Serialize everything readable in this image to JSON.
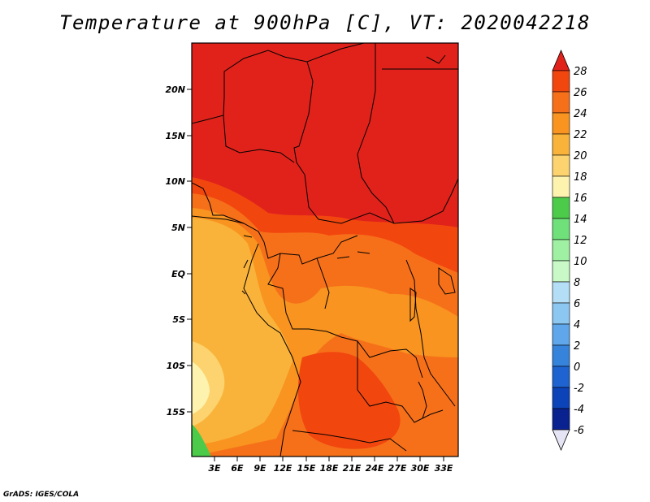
{
  "map": {
    "title": "Temperature at 900hPa [C], VT: 2020042218",
    "lat_labels": [
      "20N",
      "15N",
      "10N",
      "5N",
      "EQ",
      "5S",
      "10S",
      "15S"
    ],
    "lon_labels": [
      "3E",
      "6E",
      "9E",
      "12E",
      "15E",
      "18E",
      "21E",
      "24E",
      "27E",
      "30E",
      "33E"
    ],
    "credit": "GrADS: IGES/COLA"
  },
  "colorbar": {
    "labels": [
      "28",
      "26",
      "24",
      "22",
      "20",
      "18",
      "16",
      "14",
      "12",
      "10",
      "8",
      "6",
      "4",
      "2",
      "0",
      "-2",
      "-4",
      "-6"
    ],
    "colors": [
      "#e0221b",
      "#f2460f",
      "#f6701a",
      "#f8941f",
      "#f9b33a",
      "#fcd36e",
      "#fdf2ae",
      "#4ccb4b",
      "#6fe07a",
      "#9ff0a2",
      "#c8f9c6",
      "#b3def6",
      "#8cc7f2",
      "#5fa6ea",
      "#3683dc",
      "#1e63d0",
      "#0d43b8",
      "#0a2190",
      "#e4e4f4"
    ]
  },
  "palette": {
    "hot": "#e0221b",
    "hot2": "#f2460f",
    "warm": "#f6701a",
    "mid": "#f8941f",
    "cool": "#f9b33a",
    "pale": "#fcd36e",
    "very_pale": "#fdf2ae",
    "green": "#4ccb4b"
  }
}
